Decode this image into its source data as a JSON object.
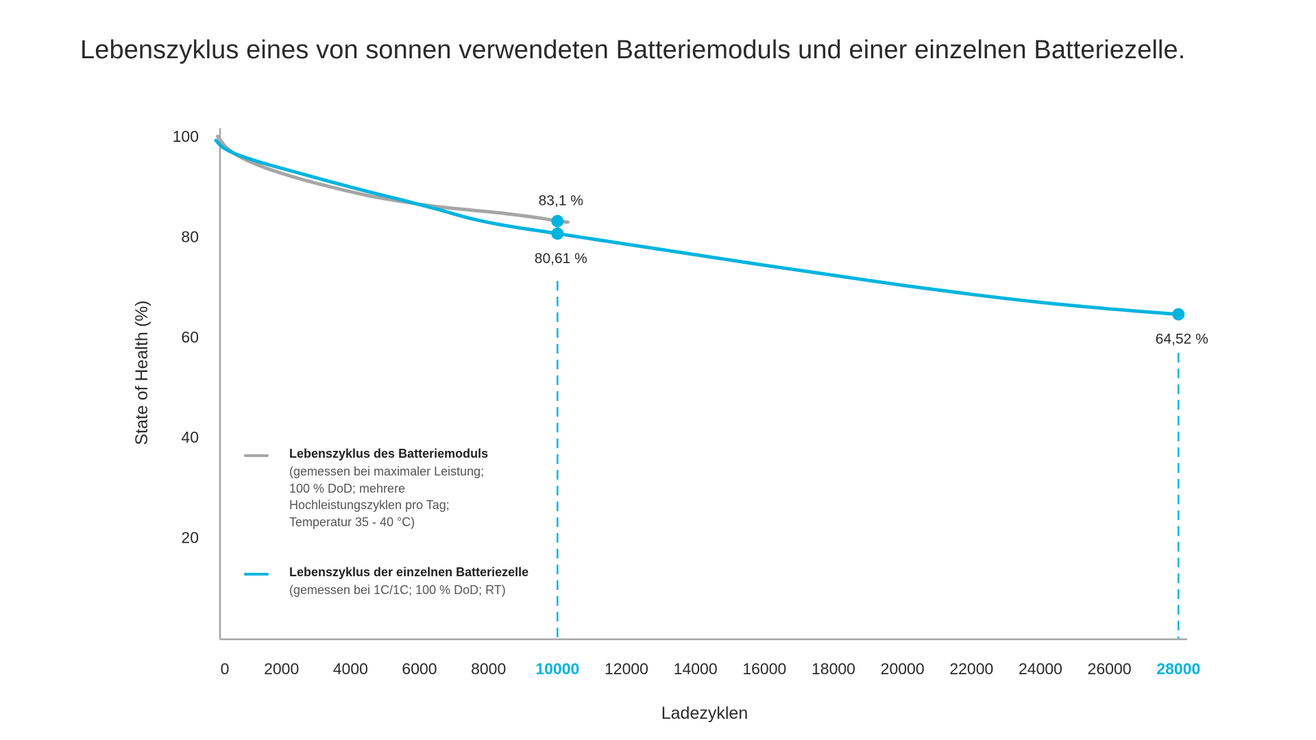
{
  "title": "Lebenszyklus eines von sonnen verwendeten Batteriemoduls und einer einzelnen Batteriezelle.",
  "colors": {
    "module": "#a6a6a6",
    "cell": "#00b4de",
    "axis": "#a6a6a6",
    "text": "#2a2a2a",
    "highlight": "#00b4de"
  },
  "chart_data": {
    "type": "line",
    "title": "Lebenszyklus eines von sonnen verwendeten Batteriemoduls und einer einzelnen Batteriezelle.",
    "xlabel": "Ladezyklen",
    "ylabel": "State of Health (%)",
    "xlim": [
      0,
      29000
    ],
    "ylim": [
      0,
      100
    ],
    "grid": false,
    "x_ticks": [
      0,
      2000,
      4000,
      6000,
      8000,
      10000,
      12000,
      14000,
      16000,
      18000,
      20000,
      22000,
      24000,
      26000,
      28000
    ],
    "x_tick_labels": [
      "0",
      "2000",
      "4000",
      "6000",
      "8000",
      "10000",
      "12000",
      "14000",
      "16000",
      "18000",
      "20000",
      "22000",
      "24000",
      "26000",
      "28000"
    ],
    "x_tick_highlight": [
      10000,
      28000
    ],
    "y_ticks": [
      20,
      40,
      60,
      80,
      100
    ],
    "y_tick_labels": [
      "20",
      "40",
      "60",
      "80",
      "100"
    ],
    "legend_position": "bottom-left",
    "series": [
      {
        "name": "Lebenszyklus des Batteriemoduls",
        "description": "(gemessen bei maximaler Leistung;\n100 % DoD; mehrere\nHochleistungszyklen pro Tag;\nTemperatur 35 - 40 °C)",
        "color": "#a6a6a6",
        "x": [
          150,
          400,
          800,
          1500,
          2500,
          3500,
          4500,
          5500,
          6500,
          7500,
          8500,
          9500,
          10000,
          10300
        ],
        "y": [
          100,
          97.8,
          95.9,
          93.8,
          91.6,
          89.8,
          88.2,
          87.0,
          86.0,
          85.3,
          84.6,
          83.7,
          83.1,
          82.9
        ],
        "markers": [
          {
            "x": 10000,
            "y": 83.1,
            "label": "83,1 %",
            "label_position": "above"
          }
        ]
      },
      {
        "name": "Lebenszyklus der einzelnen Batteriezelle",
        "description": "(gemessen bei 1C/1C; 100 % DoD; RT)",
        "color": "#00b4de",
        "x": [
          100,
          300,
          700,
          1500,
          2500,
          3500,
          4500,
          5500,
          6500,
          7500,
          8500,
          10000,
          12000,
          14000,
          16000,
          18000,
          20000,
          22000,
          24000,
          26000,
          28000
        ],
        "y": [
          99.2,
          97.8,
          96.4,
          94.6,
          92.7,
          90.8,
          89.0,
          87.3,
          85.5,
          83.6,
          82.2,
          80.61,
          78.5,
          76.4,
          74.3,
          72.3,
          70.3,
          68.5,
          66.9,
          65.6,
          64.52
        ],
        "markers": [
          {
            "x": 10000,
            "y": 80.61,
            "label": "80,61 %",
            "label_position": "below"
          },
          {
            "x": 28000,
            "y": 64.52,
            "label": "64,52 %",
            "label_position": "below"
          }
        ]
      }
    ],
    "reference_lines": [
      {
        "x": 10000,
        "style": "dashed",
        "color": "#00b4de"
      },
      {
        "x": 28000,
        "style": "dashed",
        "color": "#00b4de"
      }
    ]
  }
}
